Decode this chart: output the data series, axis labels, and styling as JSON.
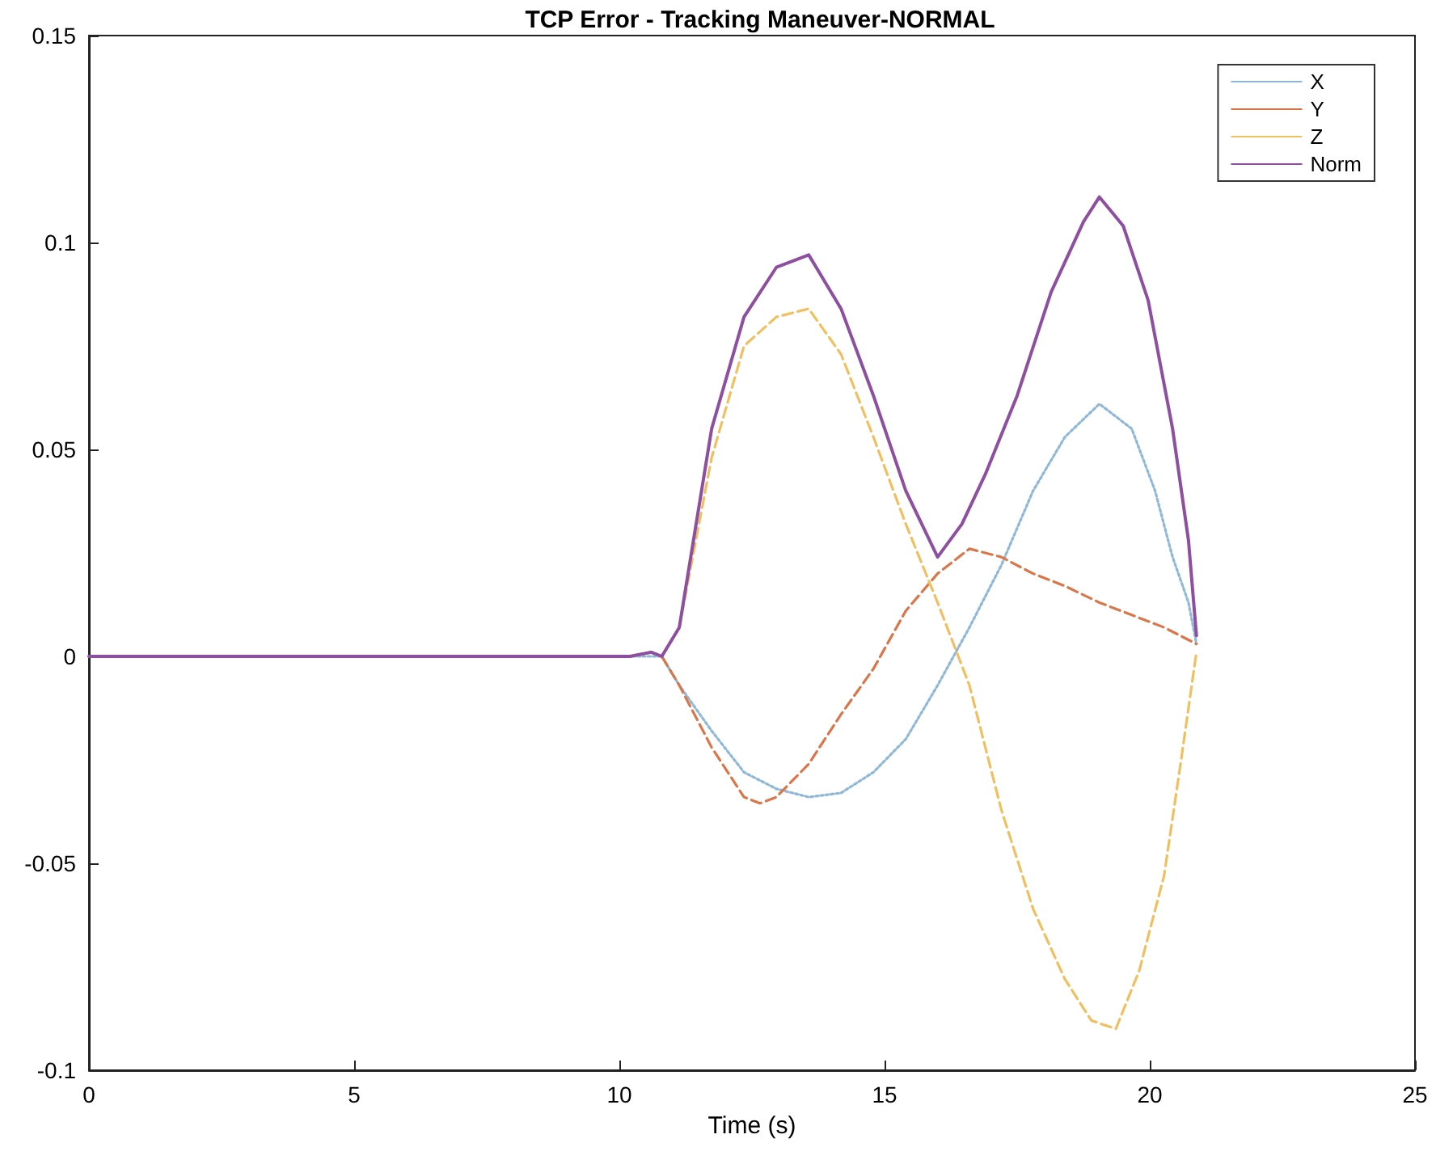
{
  "chart_data": {
    "type": "line",
    "title": "TCP Error - Tracking Maneuver-NORMAL",
    "xlabel": "Time (s)",
    "xlim": [
      0,
      25
    ],
    "xticks": [
      0,
      5,
      10,
      15,
      20,
      25
    ],
    "ylim": [
      -0.1,
      0.15
    ],
    "yticks": [
      -0.1,
      -0.05,
      0,
      0.05,
      0.1,
      0.15
    ],
    "grid": false,
    "legend": "top right",
    "marker": "none",
    "x": [
      0,
      10.2,
      10.6,
      10.8,
      11.13,
      11.74,
      12.35,
      12.65,
      12.96,
      13.57,
      14.18,
      14.79,
      15.4,
      16.0,
      16.46,
      16.6,
      16.9,
      17.2,
      17.5,
      17.8,
      18.14,
      18.4,
      18.75,
      18.9,
      19.05,
      19.36,
      19.5,
      19.66,
      19.8,
      19.97,
      20.1,
      20.27,
      20.43,
      20.58,
      20.73,
      20.88
    ],
    "series": [
      {
        "name": "X",
        "color": "#8fb8d8",
        "line_style": "dotted",
        "values": [
          0,
          0,
          0,
          0,
          -0.007,
          -0.018,
          -0.028,
          null,
          -0.032,
          -0.034,
          -0.033,
          -0.028,
          -0.02,
          -0.007,
          null,
          0.007,
          null,
          0.022,
          null,
          0.04,
          null,
          0.053,
          null,
          null,
          0.061,
          null,
          null,
          0.055,
          null,
          null,
          0.04,
          null,
          0.024,
          null,
          0.013,
          0.003
        ]
      },
      {
        "name": "Y",
        "color": "#d9764a",
        "line_style": "dashed",
        "values": [
          0,
          0,
          0.001,
          0,
          -0.007,
          -0.022,
          -0.034,
          -0.0355,
          -0.034,
          -0.026,
          -0.014,
          -0.003,
          0.011,
          0.02,
          null,
          0.026,
          null,
          0.024,
          null,
          0.02,
          null,
          0.017,
          null,
          null,
          0.013,
          null,
          null,
          0.01,
          null,
          null,
          null,
          0.007,
          null,
          null,
          null,
          0.003
        ]
      },
      {
        "name": "Z",
        "color": "#f0c060",
        "line_style": "dashed",
        "values": [
          0,
          0,
          0.001,
          0,
          0.007,
          0.048,
          0.075,
          null,
          0.082,
          0.084,
          0.073,
          0.053,
          0.032,
          0.013,
          null,
          -0.007,
          -0.022,
          -0.037,
          null,
          -0.061,
          null,
          -0.078,
          null,
          -0.088,
          null,
          -0.09,
          null,
          null,
          -0.076,
          null,
          null,
          -0.053,
          null,
          -0.026,
          null,
          0.001
        ]
      },
      {
        "name": "Norm",
        "color": "#8e4fa0",
        "line_style": "solid",
        "values": [
          0,
          0,
          0.001,
          0,
          0.007,
          0.055,
          0.082,
          null,
          0.094,
          0.097,
          0.084,
          0.063,
          0.04,
          0.024,
          0.032,
          null,
          0.044,
          null,
          0.063,
          null,
          0.088,
          null,
          0.105,
          null,
          0.111,
          null,
          0.104,
          null,
          null,
          0.086,
          null,
          null,
          0.055,
          null,
          0.028,
          0.005
        ]
      }
    ]
  }
}
